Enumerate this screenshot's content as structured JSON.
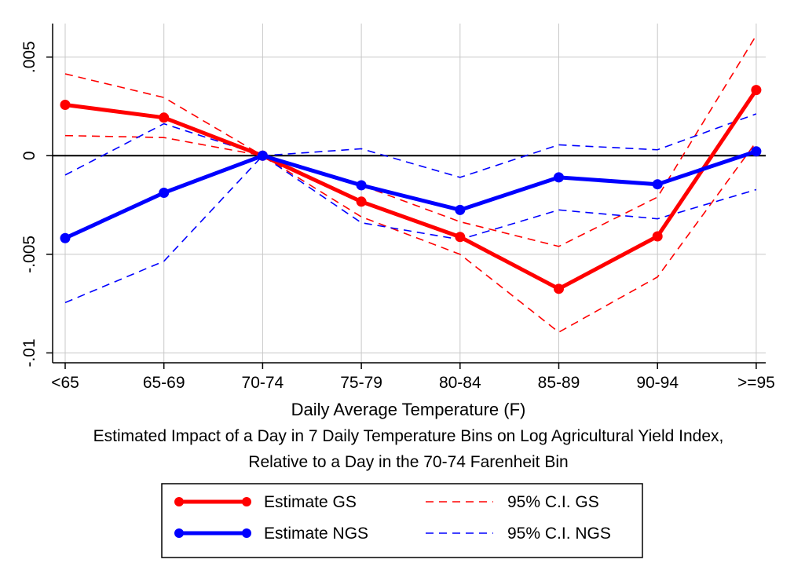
{
  "chart_data": {
    "type": "line",
    "xlabel": "Daily Average Temperature (F)",
    "categories": [
      "<65",
      "65-69",
      "70-74",
      "75-79",
      "80-84",
      "85-89",
      "90-94",
      ">=95"
    ],
    "ylim": [
      -0.0105,
      0.0067
    ],
    "yticks": [
      ".005",
      "0",
      "-.005",
      "-.01"
    ],
    "ytick_values": [
      0.005,
      0,
      -0.005,
      -0.01
    ],
    "grid": true,
    "reference_line": 0,
    "notes": [
      "Estimated Impact of a Day in 7 Daily Temperature Bins on Log Agricultural Yield Index,",
      "Relative to a Day in the 70-74 Farenheit Bin"
    ],
    "legend_placement": "bottom",
    "series": [
      {
        "name": "Estimate GS",
        "color": "#ff0000",
        "style": "solid-markers",
        "values": [
          0.00258,
          0.00193,
          0.0,
          -0.00233,
          -0.00412,
          -0.00675,
          -0.00409,
          0.00333
        ]
      },
      {
        "name": "Estimate NGS",
        "color": "#0000ff",
        "style": "solid-markers",
        "values": [
          -0.00418,
          -0.00188,
          0.0,
          -0.0015,
          -0.00275,
          -0.0011,
          -0.00145,
          0.00022
        ]
      },
      {
        "name": "95% C.I. GS",
        "color": "#ff0000",
        "style": "dashed",
        "upper": [
          0.00415,
          0.00295,
          0.0,
          -0.0015,
          -0.00335,
          -0.0046,
          -0.0021,
          0.0061
        ],
        "lower": [
          0.00102,
          0.00092,
          0.0,
          -0.0031,
          -0.005,
          -0.00895,
          -0.00615,
          0.0007
        ]
      },
      {
        "name": "95% C.I. NGS",
        "color": "#0000ff",
        "style": "dashed",
        "upper": [
          -0.00098,
          0.00162,
          0.0,
          0.00035,
          -0.0011,
          0.00055,
          0.0003,
          0.00212
        ],
        "lower": [
          -0.00745,
          -0.00535,
          0.0,
          -0.0034,
          -0.00425,
          -0.00275,
          -0.0032,
          -0.00172
        ]
      }
    ]
  }
}
